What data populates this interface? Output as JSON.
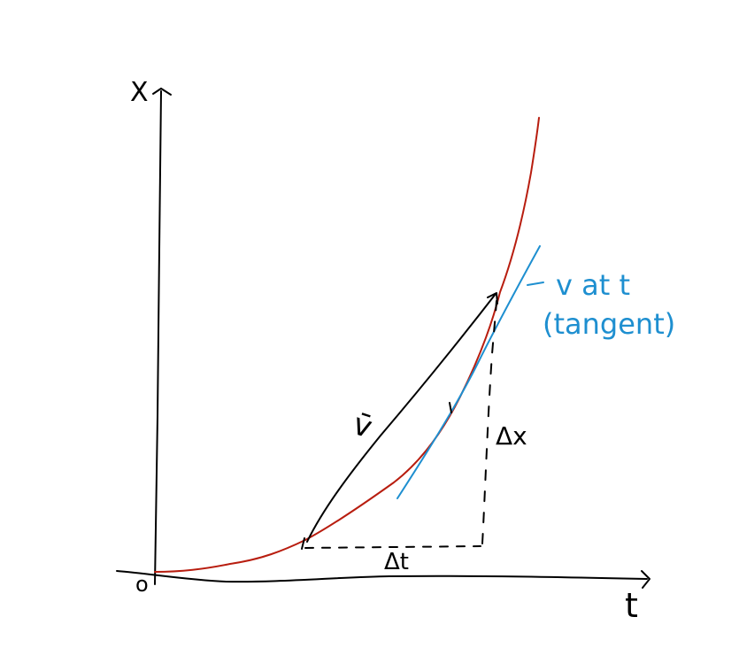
{
  "axes": {
    "y_label": "X",
    "x_label": "t",
    "origin_label": "o"
  },
  "annotations": {
    "secant_label": "v̄",
    "delta_x_label": "Δx",
    "delta_t_label": "Δt",
    "tangent_label_line1": "v at t",
    "tangent_label_line2": "(tangent)"
  },
  "colors": {
    "curve": "#b81d0f",
    "tangent": "#1e8fd0",
    "ink": "#000000"
  }
}
